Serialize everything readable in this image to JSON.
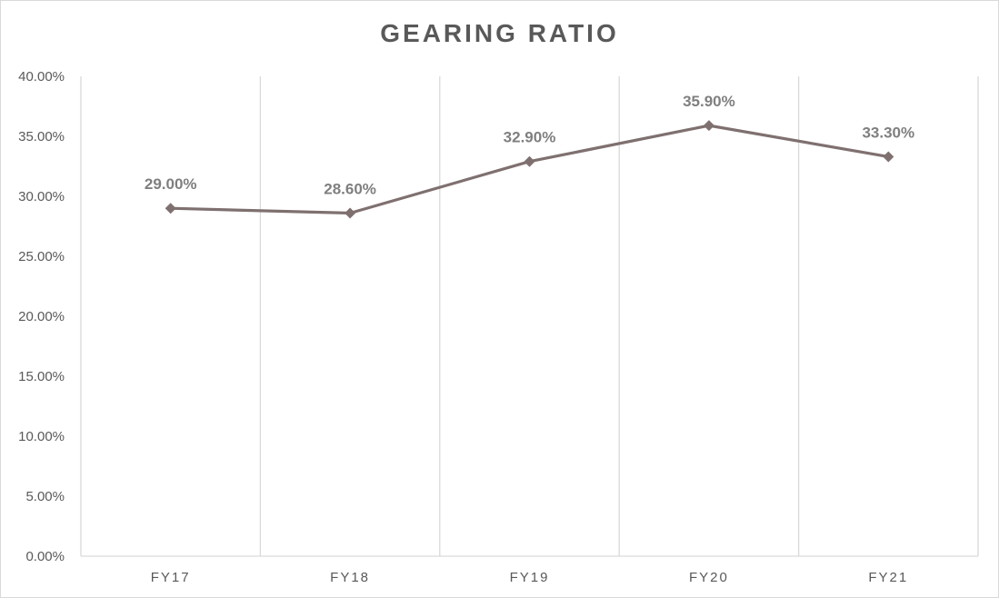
{
  "chart_data": {
    "type": "line",
    "title": "GEARING RATIO",
    "xlabel": "",
    "ylabel": "",
    "categories": [
      "FY17",
      "FY18",
      "FY19",
      "FY20",
      "FY21"
    ],
    "series": [
      {
        "values": [
          29.0,
          28.6,
          32.9,
          35.9,
          33.3
        ],
        "data_labels": [
          "29.00%",
          "28.60%",
          "32.90%",
          "35.90%",
          "33.30%"
        ],
        "color": "#7f7070",
        "marker": "diamond"
      }
    ],
    "ylim": [
      0,
      40
    ],
    "yticks": [
      0,
      5,
      10,
      15,
      20,
      25,
      30,
      35,
      40
    ],
    "ytick_labels": [
      "0.00%",
      "5.00%",
      "10.00%",
      "15.00%",
      "20.00%",
      "25.00%",
      "30.00%",
      "35.00%",
      "40.00%"
    ],
    "grid": "vertical",
    "legend": "none"
  }
}
